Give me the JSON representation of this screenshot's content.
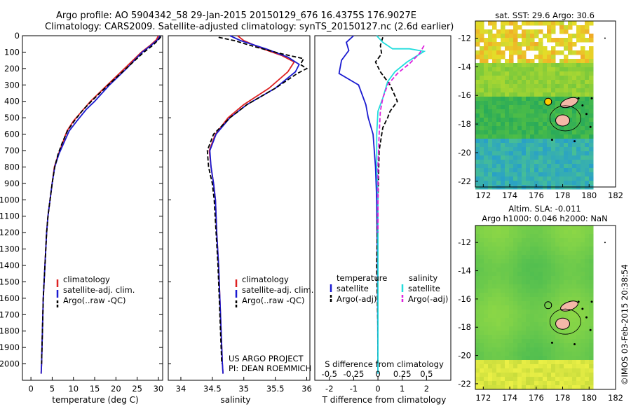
{
  "header": {
    "line1": "Argo profile: AO 5904342_58 29-Jan-2015 20150129_676 16.4375S 176.9027E",
    "line2": "Climatology: CARS2009. Satellite-adjusted climatology: synTS_20150127.nc (2.6d earlier)"
  },
  "colors": {
    "climatology": "#dd2222",
    "satellite": "#1a1ad0",
    "argo": "#000000",
    "sal_satellite": "#22dddd",
    "sal_argo": "#dd22dd"
  },
  "side_text": "©IMOS 03-Feb-2015 20:38:54",
  "chart_data": [
    {
      "id": "temperature",
      "type": "line",
      "xlabel": "temperature (deg C)",
      "ylabel": "",
      "xlim": [
        -2,
        31
      ],
      "ylim": [
        2100,
        0
      ],
      "xticks": [
        "0",
        "5",
        "10",
        "15",
        "20",
        "25",
        "30"
      ],
      "yticks": [
        "0",
        "100",
        "200",
        "300",
        "400",
        "500",
        "600",
        "700",
        "800",
        "900",
        "1000",
        "1100",
        "1200",
        "1300",
        "1400",
        "1500",
        "1600",
        "1700",
        "1800",
        "1900",
        "2000"
      ],
      "legend": [
        "climatology",
        "satellite-adj. clim.",
        "Argo(..raw -QC)"
      ],
      "series": [
        {
          "name": "climatology",
          "style": "solid",
          "color": "#dd2222",
          "points": [
            [
              30,
              0
            ],
            [
              29.5,
              25
            ],
            [
              28,
              60
            ],
            [
              26,
              100
            ],
            [
              22,
              200
            ],
            [
              18,
              300
            ],
            [
              14,
              400
            ],
            [
              12,
              460
            ],
            [
              10,
              520
            ],
            [
              8.5,
              580
            ],
            [
              7.5,
              650
            ],
            [
              6.5,
              720
            ],
            [
              5.5,
              800
            ],
            [
              5,
              900
            ],
            [
              4.5,
              1000
            ],
            [
              4,
              1100
            ],
            [
              3.7,
              1200
            ],
            [
              3.5,
              1300
            ],
            [
              3.3,
              1400
            ],
            [
              3.1,
              1500
            ],
            [
              2.9,
              1600
            ],
            [
              2.8,
              1700
            ],
            [
              2.7,
              1800
            ],
            [
              2.6,
              1900
            ],
            [
              2.5,
              2000
            ],
            [
              2.4,
              2060
            ]
          ]
        },
        {
          "name": "satellite-adj. clim.",
          "style": "solid",
          "color": "#1a1ad0",
          "points": [
            [
              30.4,
              0
            ],
            [
              29.8,
              25
            ],
            [
              28.2,
              60
            ],
            [
              26.2,
              100
            ],
            [
              22.5,
              200
            ],
            [
              18.5,
              300
            ],
            [
              15,
              400
            ],
            [
              13,
              450
            ],
            [
              10.8,
              520
            ],
            [
              9,
              580
            ],
            [
              7.8,
              650
            ],
            [
              6.6,
              720
            ],
            [
              5.6,
              800
            ],
            [
              5,
              900
            ],
            [
              4.5,
              1000
            ],
            [
              4,
              1100
            ],
            [
              3.7,
              1200
            ],
            [
              3.5,
              1300
            ],
            [
              3.3,
              1400
            ],
            [
              3.1,
              1500
            ],
            [
              2.9,
              1600
            ],
            [
              2.8,
              1700
            ],
            [
              2.7,
              1800
            ],
            [
              2.6,
              1900
            ],
            [
              2.5,
              2000
            ],
            [
              2.4,
              2060
            ]
          ]
        },
        {
          "name": "Argo(..raw -QC)",
          "style": "dash",
          "color": "#000000",
          "points": [
            [
              30.6,
              5
            ],
            [
              30,
              25
            ],
            [
              28.6,
              60
            ],
            [
              26.6,
              100
            ],
            [
              22.4,
              200
            ],
            [
              18.2,
              300
            ],
            [
              14.2,
              400
            ],
            [
              12,
              460
            ],
            [
              10.2,
              520
            ],
            [
              8.6,
              580
            ],
            [
              7.4,
              650
            ],
            [
              6.4,
              720
            ],
            [
              5.6,
              800
            ],
            [
              5,
              900
            ],
            [
              4.5,
              1000
            ],
            [
              4,
              1100
            ],
            [
              3.7,
              1200
            ],
            [
              3.5,
              1300
            ],
            [
              3.3,
              1400
            ],
            [
              3.1,
              1500
            ],
            [
              2.9,
              1600
            ],
            [
              2.8,
              1700
            ],
            [
              2.7,
              1800
            ],
            [
              2.6,
              1900
            ],
            [
              2.5,
              2000
            ]
          ]
        }
      ]
    },
    {
      "id": "salinity",
      "type": "line",
      "xlabel": "salinity",
      "ylabel": "",
      "xlim": [
        33.8,
        36.05
      ],
      "ylim": [
        2100,
        0
      ],
      "xticks": [
        "34",
        "34.5",
        "35",
        "35.5",
        "36"
      ],
      "yticks": [],
      "legend": [
        "climatology",
        "satellite-adj. clim.",
        "Argo(..raw -QC)"
      ],
      "annotation": [
        "US ARGO PROJECT",
        "PI: DEAN ROEMMICH"
      ],
      "series": [
        {
          "name": "climatology",
          "style": "solid",
          "color": "#dd2222",
          "points": [
            [
              34.9,
              0
            ],
            [
              35.0,
              30
            ],
            [
              35.3,
              80
            ],
            [
              35.6,
              120
            ],
            [
              35.8,
              160
            ],
            [
              35.7,
              220
            ],
            [
              35.4,
              320
            ],
            [
              35.0,
              420
            ],
            [
              34.75,
              500
            ],
            [
              34.55,
              600
            ],
            [
              34.45,
              700
            ],
            [
              34.48,
              800
            ],
            [
              34.52,
              900
            ],
            [
              34.55,
              1000
            ],
            [
              34.57,
              1200
            ],
            [
              34.6,
              1400
            ],
            [
              34.62,
              1600
            ],
            [
              34.64,
              1800
            ],
            [
              34.66,
              2000
            ],
            [
              34.67,
              2060
            ]
          ]
        },
        {
          "name": "satellite-adj. clim.",
          "style": "solid",
          "color": "#1a1ad0",
          "points": [
            [
              34.78,
              0
            ],
            [
              34.95,
              30
            ],
            [
              35.35,
              80
            ],
            [
              35.7,
              130
            ],
            [
              35.88,
              175
            ],
            [
              35.82,
              220
            ],
            [
              35.5,
              320
            ],
            [
              35.05,
              420
            ],
            [
              34.78,
              500
            ],
            [
              34.56,
              600
            ],
            [
              34.46,
              700
            ],
            [
              34.48,
              800
            ],
            [
              34.52,
              900
            ],
            [
              34.55,
              1000
            ],
            [
              34.57,
              1200
            ],
            [
              34.6,
              1400
            ],
            [
              34.62,
              1600
            ],
            [
              34.64,
              1800
            ],
            [
              34.66,
              2000
            ],
            [
              34.67,
              2060
            ]
          ]
        },
        {
          "name": "Argo(..raw -QC)",
          "style": "dash",
          "color": "#000000",
          "points": [
            [
              34.6,
              10
            ],
            [
              34.85,
              30
            ],
            [
              35.2,
              70
            ],
            [
              35.6,
              110
            ],
            [
              35.95,
              140
            ],
            [
              35.9,
              175
            ],
            [
              36.0,
              200
            ],
            [
              35.85,
              230
            ],
            [
              35.5,
              320
            ],
            [
              35.05,
              420
            ],
            [
              34.78,
              500
            ],
            [
              34.52,
              600
            ],
            [
              34.42,
              700
            ],
            [
              34.44,
              800
            ],
            [
              34.5,
              900
            ],
            [
              34.53,
              1000
            ],
            [
              34.56,
              1200
            ],
            [
              34.59,
              1400
            ],
            [
              34.61,
              1600
            ],
            [
              34.63,
              1800
            ],
            [
              34.65,
              2000
            ]
          ]
        }
      ]
    },
    {
      "id": "difference",
      "type": "line",
      "xlabel": "T difference from climatology",
      "x2label": "S difference from climatology",
      "xlim": [
        -2.6,
        3.0
      ],
      "ylim": [
        2100,
        0
      ],
      "xticks": [
        "-2",
        "-1",
        "0",
        "1",
        "2"
      ],
      "x2ticks": [
        "-0.5",
        "-0.25",
        "0",
        "0.25",
        "0.5"
      ],
      "yticks": [],
      "legend_titles": [
        "temperature",
        "salinity"
      ],
      "legend": [
        "satellite",
        "Argo(-adj)",
        "satellite",
        "Argo(-adj)"
      ],
      "series": [
        {
          "name": "satellite",
          "quantity": "temperature",
          "style": "solid",
          "color": "#1a1ad0",
          "points": [
            [
              -1,
              0
            ],
            [
              -1.3,
              40
            ],
            [
              -1.2,
              90
            ],
            [
              -1.5,
              150
            ],
            [
              -1.6,
              230
            ],
            [
              -0.8,
              300
            ],
            [
              -0.5,
              420
            ],
            [
              -0.4,
              500
            ],
            [
              -0.2,
              600
            ],
            [
              -0.1,
              800
            ],
            [
              -0.05,
              1000
            ],
            [
              -0.02,
              1400
            ],
            [
              0,
              2060
            ]
          ]
        },
        {
          "name": "Argo(-adj)",
          "quantity": "temperature",
          "style": "dash",
          "color": "#000000",
          "points": [
            [
              0.2,
              10
            ],
            [
              0.1,
              60
            ],
            [
              0.15,
              110
            ],
            [
              -0.1,
              160
            ],
            [
              0.1,
              220
            ],
            [
              0.5,
              300
            ],
            [
              0.8,
              400
            ],
            [
              0.5,
              460
            ],
            [
              0.4,
              500
            ],
            [
              0.2,
              560
            ],
            [
              0.05,
              700
            ],
            [
              0,
              1000
            ],
            [
              -0.05,
              1400
            ],
            [
              0,
              1800
            ],
            [
              0,
              2000
            ]
          ]
        },
        {
          "name": "satellite",
          "quantity": "salinity",
          "style": "solid",
          "color": "#22dddd",
          "points": [
            [
              -0.05,
              0
            ],
            [
              0.2,
              40
            ],
            [
              0.6,
              80
            ],
            [
              1.3,
              80
            ],
            [
              1.9,
              95
            ],
            [
              1.2,
              160
            ],
            [
              0.7,
              220
            ],
            [
              0.4,
              280
            ],
            [
              0.2,
              380
            ],
            [
              0,
              460
            ],
            [
              -0.05,
              600
            ],
            [
              -0.05,
              800
            ],
            [
              0,
              1000
            ],
            [
              0,
              1400
            ],
            [
              0,
              2060
            ]
          ]
        },
        {
          "name": "Argo(-adj)",
          "quantity": "salinity",
          "style": "dash",
          "color": "#dd22dd",
          "points": [
            [
              1.9,
              60
            ],
            [
              1.7,
              110
            ],
            [
              1.3,
              170
            ],
            [
              0.8,
              230
            ],
            [
              0.4,
              300
            ],
            [
              0.2,
              380
            ],
            [
              0.1,
              460
            ],
            [
              0.05,
              600
            ],
            [
              0,
              800
            ],
            [
              0,
              1000
            ],
            [
              0,
              1200
            ]
          ]
        }
      ]
    },
    {
      "id": "sst_map",
      "type": "heatmap",
      "title": "sat. SST: 29.6 Argo: 30.6",
      "xticks": [
        "172",
        "174",
        "176",
        "178",
        "180",
        "182"
      ],
      "yticks": [
        "-12",
        "-14",
        "-16",
        "-18",
        "-20",
        "-22"
      ],
      "xlim": [
        171.4,
        182
      ],
      "ylim": [
        -22.4,
        -10.8
      ],
      "argo_position": [
        176.9,
        -16.44
      ]
    },
    {
      "id": "sla_map",
      "type": "heatmap",
      "title": "Altim. SLA: -0.011",
      "subtitle": "Argo h1000: 0.046 h2000: NaN",
      "xticks": [
        "172",
        "174",
        "176",
        "178",
        "180",
        "182"
      ],
      "yticks": [
        "-12",
        "-14",
        "-16",
        "-18",
        "-20",
        "-22"
      ],
      "xlim": [
        171.4,
        182
      ],
      "ylim": [
        -22.4,
        -10.8
      ],
      "argo_position": [
        176.9,
        -16.44
      ]
    }
  ]
}
